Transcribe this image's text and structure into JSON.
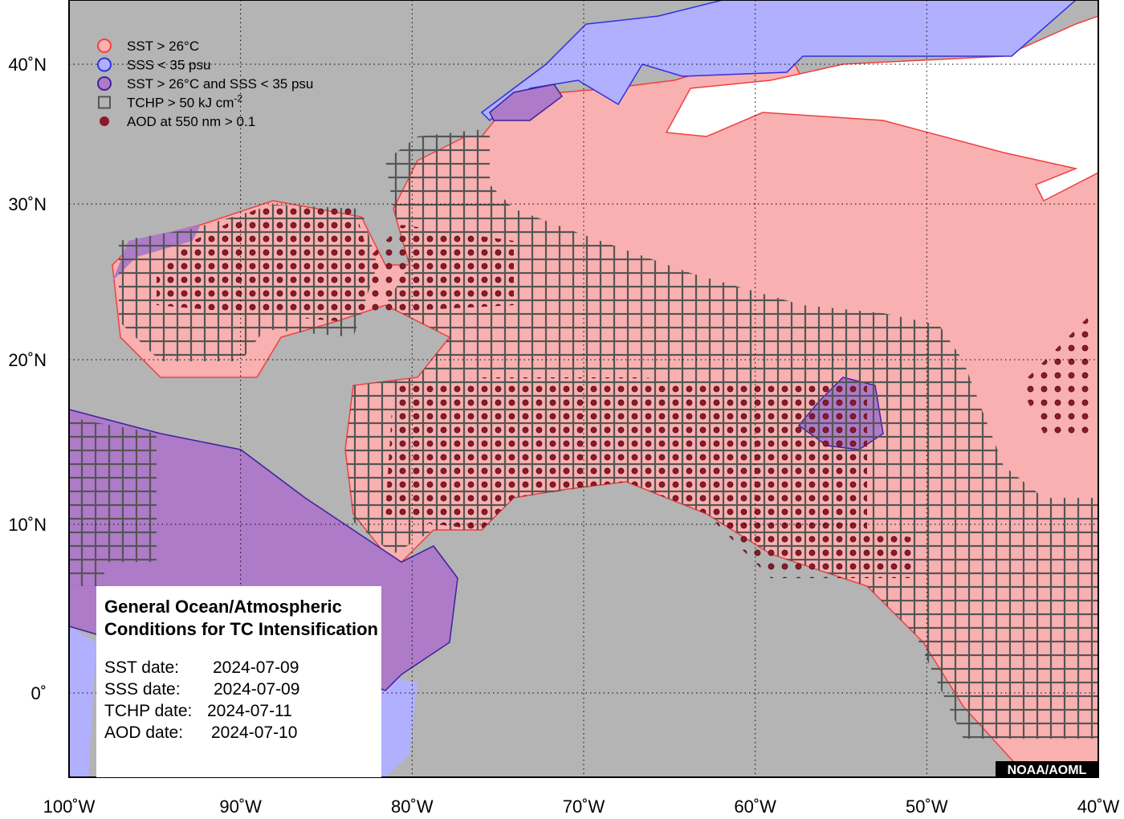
{
  "legend": {
    "items": [
      {
        "label": "SST > 26°C"
      },
      {
        "label": "SSS < 35 psu"
      },
      {
        "label": "SST > 26°C and SSS < 35 psu"
      },
      {
        "label": "TCHP > 50 kJ cm",
        "superscript": "-2"
      },
      {
        "label": "AOD at 550 nm > 0.1"
      }
    ]
  },
  "axes": {
    "x_ticks": [
      "100˚W",
      "90˚W",
      "80˚W",
      "70˚W",
      "60˚W",
      "50˚W",
      "40˚W"
    ],
    "y_ticks": [
      "40˚N",
      "30˚N",
      "20˚N",
      "10˚N",
      "0˚"
    ]
  },
  "info_box": {
    "title_lines": [
      "General Ocean/Atmospheric",
      "Conditions for TC Intensification"
    ],
    "dates": [
      {
        "label": "SST date:",
        "value": "2024-07-09"
      },
      {
        "label": "SSS date:",
        "value": "2024-07-09"
      },
      {
        "label": "TCHP date:",
        "value": "2024-07-11"
      },
      {
        "label": "AOD date:",
        "value": "2024-07-10"
      }
    ]
  },
  "credit": "NOAA/AOML"
}
